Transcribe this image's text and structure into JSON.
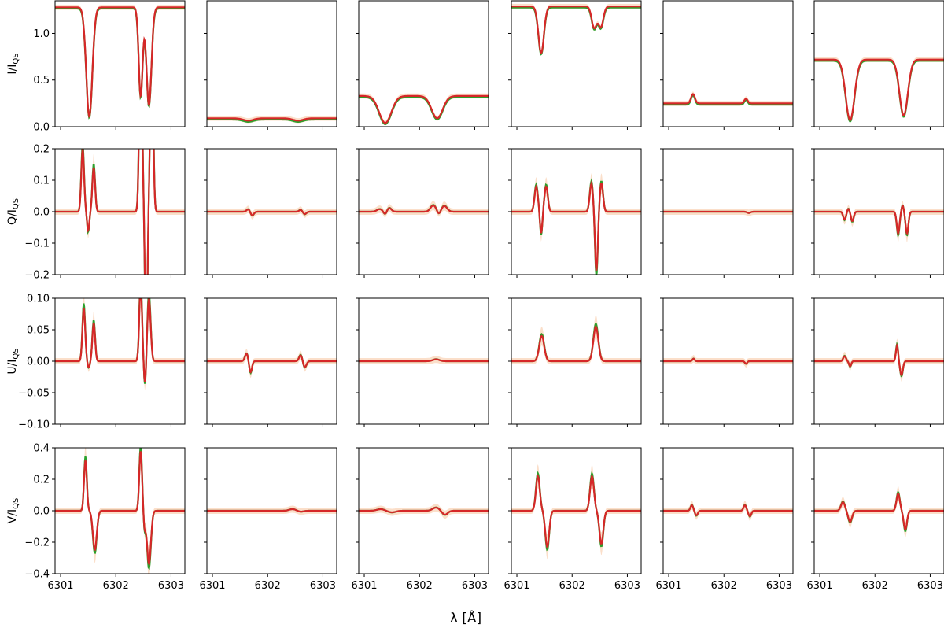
{
  "figure": {
    "xlabel": "λ [Å]",
    "ylabels": [
      "I/I",
      "Q/I",
      "U/I",
      "V/I"
    ],
    "ylabel_subscript": "QS"
  },
  "colors": {
    "observed": "#5b6fa8",
    "band": "#f7b98a",
    "model_green": "#2ca02c",
    "model_red": "#d62728"
  },
  "chart_data": {
    "type": "line",
    "layout": "grid 4 rows x 6 columns",
    "xlim": [
      6300.9,
      6303.25
    ],
    "xticks": [
      6301,
      6302,
      6303
    ],
    "xlabel": "λ [Å]",
    "rows": [
      {
        "ylabel": "I/I_QS",
        "ylim": [
          0,
          1.35
        ],
        "yticks": [
          0,
          0.5,
          1.0
        ],
        "ytick_labels": [
          "0.0",
          "0.5",
          "1.0"
        ]
      },
      {
        "ylabel": "Q/I_QS",
        "ylim": [
          -0.2,
          0.2
        ],
        "yticks": [
          -0.2,
          -0.1,
          0,
          0.1,
          0.2
        ],
        "ytick_labels": [
          "−0.2",
          "−0.1",
          "0.0",
          "0.1",
          "0.2"
        ]
      },
      {
        "ylabel": "U/I_QS",
        "ylim": [
          -0.1,
          0.1
        ],
        "yticks": [
          -0.1,
          -0.05,
          0,
          0.05,
          0.1
        ],
        "ytick_labels": [
          "−0.10",
          "−0.05",
          "0.00",
          "0.05",
          "0.10"
        ]
      },
      {
        "ylabel": "V/I_QS",
        "ylim": [
          -0.4,
          0.4
        ],
        "yticks": [
          -0.4,
          -0.2,
          0,
          0.2,
          0.4
        ],
        "ytick_labels": [
          "−0.4",
          "−0.2",
          "0.0",
          "0.2",
          "0.4"
        ]
      }
    ],
    "profiles": {
      "I": [
        {
          "continuum": 1.28,
          "lines": [
            {
              "center": 6301.52,
              "depth": 1.17,
              "width": 0.055
            },
            {
              "center": 6302.45,
              "depth": 0.95,
              "width": 0.035
            },
            {
              "center": 6302.6,
              "depth": 1.05,
              "width": 0.045
            }
          ]
        },
        {
          "continuum": 0.09,
          "lines": [
            {
              "center": 6301.65,
              "depth": 0.025,
              "width": 0.09
            },
            {
              "center": 6302.55,
              "depth": 0.025,
              "width": 0.09
            }
          ]
        },
        {
          "continuum": 0.33,
          "lines": [
            {
              "center": 6301.38,
              "depth": 0.29,
              "width": 0.11
            },
            {
              "center": 6302.32,
              "depth": 0.24,
              "width": 0.1
            }
          ]
        },
        {
          "continuum": 1.29,
          "lines": [
            {
              "center": 6301.44,
              "depth": 0.5,
              "width": 0.05
            },
            {
              "center": 6302.4,
              "depth": 0.23,
              "width": 0.045
            },
            {
              "center": 6302.52,
              "depth": 0.22,
              "width": 0.045
            }
          ]
        },
        {
          "continuum": 0.25,
          "lines": [
            {
              "center": 6301.44,
              "depth": -0.1,
              "width": 0.035
            },
            {
              "center": 6302.4,
              "depth": -0.05,
              "width": 0.03
            }
          ]
        },
        {
          "continuum": 0.72,
          "lines": [
            {
              "center": 6301.55,
              "depth": 0.65,
              "width": 0.08
            },
            {
              "center": 6302.52,
              "depth": 0.6,
              "width": 0.075
            }
          ]
        }
      ],
      "Q": [
        {
          "lines": [
            {
              "center": 6301.4,
              "amplitude": 0.2,
              "width": 0.025
            },
            {
              "center": 6301.5,
              "amplitude": -0.06,
              "width": 0.02
            },
            {
              "center": 6301.6,
              "amplitude": 0.14,
              "width": 0.025
            },
            {
              "center": 6302.45,
              "amplitude": 0.6,
              "width": 0.025
            },
            {
              "center": 6302.55,
              "amplitude": -0.45,
              "width": 0.02
            },
            {
              "center": 6302.65,
              "amplitude": 0.6,
              "width": 0.025
            }
          ]
        },
        {
          "lines": [
            {
              "center": 6301.65,
              "amplitude": 0.008,
              "width": 0.03
            },
            {
              "center": 6301.72,
              "amplitude": -0.012,
              "width": 0.03
            },
            {
              "center": 6302.6,
              "amplitude": 0.006,
              "width": 0.03
            },
            {
              "center": 6302.67,
              "amplitude": -0.008,
              "width": 0.03
            }
          ]
        },
        {
          "lines": [
            {
              "center": 6301.28,
              "amplitude": 0.008,
              "width": 0.05
            },
            {
              "center": 6301.38,
              "amplitude": -0.01,
              "width": 0.03
            },
            {
              "center": 6301.45,
              "amplitude": 0.012,
              "width": 0.04
            },
            {
              "center": 6302.25,
              "amplitude": 0.02,
              "width": 0.05
            },
            {
              "center": 6302.35,
              "amplitude": -0.01,
              "width": 0.03
            },
            {
              "center": 6302.45,
              "amplitude": 0.018,
              "width": 0.05
            }
          ]
        },
        {
          "lines": [
            {
              "center": 6301.35,
              "amplitude": 0.08,
              "width": 0.03
            },
            {
              "center": 6301.44,
              "amplitude": -0.07,
              "width": 0.02
            },
            {
              "center": 6301.53,
              "amplitude": 0.08,
              "width": 0.03
            },
            {
              "center": 6302.35,
              "amplitude": 0.09,
              "width": 0.03
            },
            {
              "center": 6302.44,
              "amplitude": -0.19,
              "width": 0.025
            },
            {
              "center": 6302.53,
              "amplitude": 0.09,
              "width": 0.03
            }
          ]
        },
        {
          "lines": [
            {
              "center": 6302.45,
              "amplitude": -0.004,
              "width": 0.03
            }
          ]
        },
        {
          "lines": [
            {
              "center": 6301.45,
              "amplitude": -0.025,
              "width": 0.025
            },
            {
              "center": 6301.52,
              "amplitude": 0.01,
              "width": 0.02
            },
            {
              "center": 6301.59,
              "amplitude": -0.03,
              "width": 0.025
            },
            {
              "center": 6302.42,
              "amplitude": -0.07,
              "width": 0.025
            },
            {
              "center": 6302.5,
              "amplitude": 0.02,
              "width": 0.02
            },
            {
              "center": 6302.58,
              "amplitude": -0.07,
              "width": 0.025
            }
          ]
        }
      ],
      "U": [
        {
          "lines": [
            {
              "center": 6301.42,
              "amplitude": 0.085,
              "width": 0.025
            },
            {
              "center": 6301.51,
              "amplitude": -0.01,
              "width": 0.02
            },
            {
              "center": 6301.6,
              "amplitude": 0.06,
              "width": 0.025
            },
            {
              "center": 6302.45,
              "amplitude": 0.12,
              "width": 0.025
            },
            {
              "center": 6302.53,
              "amplitude": -0.04,
              "width": 0.02
            },
            {
              "center": 6302.6,
              "amplitude": 0.1,
              "width": 0.03
            }
          ]
        },
        {
          "lines": [
            {
              "center": 6301.62,
              "amplitude": 0.012,
              "width": 0.03
            },
            {
              "center": 6301.69,
              "amplitude": -0.018,
              "width": 0.025
            },
            {
              "center": 6302.6,
              "amplitude": 0.01,
              "width": 0.03
            },
            {
              "center": 6302.67,
              "amplitude": -0.01,
              "width": 0.03
            }
          ]
        },
        {
          "lines": [
            {
              "center": 6302.3,
              "amplitude": 0.003,
              "width": 0.06
            }
          ]
        },
        {
          "lines": [
            {
              "center": 6301.45,
              "amplitude": 0.04,
              "width": 0.045
            },
            {
              "center": 6302.43,
              "amplitude": 0.055,
              "width": 0.045
            }
          ]
        },
        {
          "lines": [
            {
              "center": 6301.45,
              "amplitude": 0.004,
              "width": 0.02
            },
            {
              "center": 6302.4,
              "amplitude": -0.004,
              "width": 0.02
            }
          ]
        },
        {
          "lines": [
            {
              "center": 6301.45,
              "amplitude": 0.008,
              "width": 0.025
            },
            {
              "center": 6301.55,
              "amplitude": -0.008,
              "width": 0.02
            },
            {
              "center": 6302.4,
              "amplitude": 0.025,
              "width": 0.02
            },
            {
              "center": 6302.48,
              "amplitude": -0.022,
              "width": 0.025
            }
          ]
        }
      ],
      "V": [
        {
          "lines": [
            {
              "center": 6301.45,
              "amplitude": 0.32,
              "width": 0.025
            },
            {
              "center": 6301.62,
              "amplitude": -0.25,
              "width": 0.035
            },
            {
              "center": 6302.45,
              "amplitude": 0.38,
              "width": 0.025
            },
            {
              "center": 6302.52,
              "amplitude": -0.1,
              "width": 0.02
            },
            {
              "center": 6302.6,
              "amplitude": -0.34,
              "width": 0.035
            }
          ]
        },
        {
          "lines": [
            {
              "center": 6302.45,
              "amplitude": 0.01,
              "width": 0.06
            },
            {
              "center": 6302.6,
              "amplitude": -0.006,
              "width": 0.05
            }
          ]
        },
        {
          "lines": [
            {
              "center": 6301.3,
              "amplitude": 0.01,
              "width": 0.07
            },
            {
              "center": 6301.5,
              "amplitude": -0.01,
              "width": 0.07
            },
            {
              "center": 6302.3,
              "amplitude": 0.02,
              "width": 0.06
            },
            {
              "center": 6302.46,
              "amplitude": -0.025,
              "width": 0.05
            }
          ]
        },
        {
          "lines": [
            {
              "center": 6301.38,
              "amplitude": 0.22,
              "width": 0.035
            },
            {
              "center": 6301.55,
              "amplitude": -0.23,
              "width": 0.035
            },
            {
              "center": 6302.36,
              "amplitude": 0.22,
              "width": 0.035
            },
            {
              "center": 6302.53,
              "amplitude": -0.21,
              "width": 0.035
            }
          ]
        },
        {
          "lines": [
            {
              "center": 6301.42,
              "amplitude": 0.035,
              "width": 0.025
            },
            {
              "center": 6301.5,
              "amplitude": -0.03,
              "width": 0.025
            },
            {
              "center": 6302.38,
              "amplitude": 0.035,
              "width": 0.025
            },
            {
              "center": 6302.47,
              "amplitude": -0.035,
              "width": 0.025
            }
          ]
        },
        {
          "lines": [
            {
              "center": 6301.42,
              "amplitude": 0.055,
              "width": 0.035
            },
            {
              "center": 6301.55,
              "amplitude": -0.07,
              "width": 0.035
            },
            {
              "center": 6302.42,
              "amplitude": 0.11,
              "width": 0.03
            },
            {
              "center": 6302.55,
              "amplitude": -0.12,
              "width": 0.03
            }
          ]
        }
      ]
    }
  }
}
